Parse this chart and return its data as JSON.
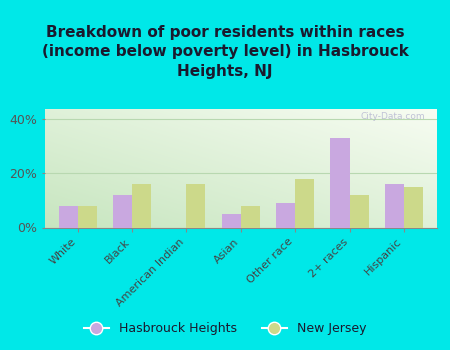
{
  "title": "Breakdown of poor residents within races\n(income below poverty level) in Hasbrouck\nHeights, NJ",
  "categories": [
    "White",
    "Black",
    "American Indian",
    "Asian",
    "Other race",
    "2+ races",
    "Hispanic"
  ],
  "hasbrouck_values": [
    8,
    12,
    0,
    5,
    9,
    33,
    16
  ],
  "nj_values": [
    8,
    16,
    16,
    8,
    18,
    12,
    15
  ],
  "hasbrouck_color": "#c9a8e0",
  "nj_color": "#ccd98a",
  "bar_width": 0.35,
  "ylim": [
    0,
    44
  ],
  "yticks": [
    0,
    20,
    40
  ],
  "ytick_labels": [
    "0%",
    "20%",
    "40%"
  ],
  "outer_bg": "#00e8e8",
  "grid_color": "#b8d8b0",
  "watermark": "City-Data.com",
  "legend_hasbrouck": "Hasbrouck Heights",
  "legend_nj": "New Jersey",
  "title_fontsize": 11,
  "tick_fontsize": 8,
  "grad_top": "#f5fdf0",
  "grad_bottom": "#c8e6c0"
}
